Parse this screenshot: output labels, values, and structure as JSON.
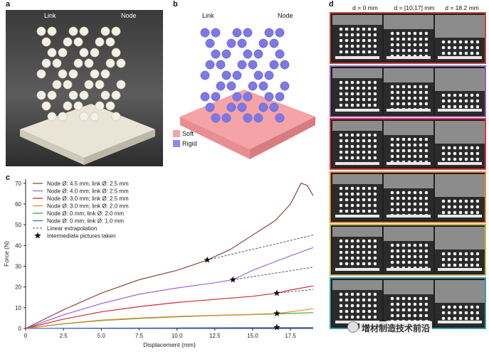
{
  "panels": {
    "a": {
      "letter": "a",
      "link": "Link",
      "node": "Node"
    },
    "b": {
      "letter": "b",
      "link": "Link",
      "node": "Node",
      "legend": [
        {
          "label": "Soft",
          "color": "#f4a3a6"
        },
        {
          "label": "Rigid",
          "color": "#8c88f0"
        }
      ]
    },
    "c": {
      "letter": "c"
    },
    "d": {
      "letter": "d",
      "columns": [
        "d = 0 mm",
        "d = [10;17] mm",
        "d = 18.2 mm"
      ],
      "row_colors": [
        "#c9463d",
        "#9b59b6",
        "#d9344a",
        "#e8892a",
        "#c9b34a",
        "#3a9bb0"
      ]
    }
  },
  "watermark": "增材制造技术前沿",
  "chart_data": {
    "type": "line",
    "xlabel": "Displacement (mm)",
    "ylabel": "Force (N)",
    "xlim": [
      0,
      19
    ],
    "ylim": [
      0,
      72
    ],
    "xticks": [
      "0",
      "2.5",
      "5.0",
      "7.5",
      "10.0",
      "12.5",
      "15.0",
      "17.5"
    ],
    "yticks": [
      "0",
      "10",
      "20",
      "30",
      "40",
      "50",
      "60",
      "70"
    ],
    "legend_position": "top-left",
    "series": [
      {
        "name": "Node Ø: 4.5 mm; link Ø: 2.5 mm",
        "color": "#8b4a3c",
        "x": [
          0,
          2.5,
          5,
          7.5,
          10,
          12,
          13.5,
          15,
          16.5,
          17.5,
          18.2,
          18.6,
          19
        ],
        "y": [
          0,
          9,
          17,
          23.5,
          28,
          33,
          38,
          45,
          52,
          60,
          70,
          69,
          64
        ]
      },
      {
        "name": "Node Ø: 4.0 mm; link Ø: 2.5 mm",
        "color": "#9b6bd6",
        "x": [
          0,
          2.5,
          5,
          7.5,
          10,
          12.5,
          13.7,
          15,
          17.5,
          19
        ],
        "y": [
          0,
          6.5,
          12,
          16.5,
          19.5,
          22,
          23.5,
          28,
          35,
          39
        ]
      },
      {
        "name": "Node Ø: 3.0 mm; link Ø: 2.5 mm",
        "color": "#cc2a35",
        "x": [
          0,
          2.5,
          5,
          7.5,
          10,
          12.5,
          15,
          16.6,
          17.5,
          19
        ],
        "y": [
          0,
          4.5,
          8,
          10.5,
          12.5,
          14,
          15.5,
          17,
          18.5,
          20.5
        ]
      },
      {
        "name": "Node Ø: 3.0 mm; link Ø: 2.0 mm",
        "color": "#e8892a",
        "x": [
          0,
          2.5,
          5,
          7.5,
          10,
          12.5,
          15,
          16.6,
          17.5,
          19
        ],
        "y": [
          0,
          2.3,
          4,
          5,
          5.8,
          6.3,
          6.8,
          7.2,
          8,
          9.5
        ]
      },
      {
        "name": "Node Ø: 0 mm; link Ø: 2.0 mm",
        "color": "#3aa845",
        "x": [
          0,
          2.5,
          5,
          7.5,
          10,
          12.5,
          15,
          16.6,
          19
        ],
        "y": [
          0,
          2.2,
          3.8,
          4.8,
          5.6,
          6.2,
          6.7,
          7,
          7.6
        ]
      },
      {
        "name": "Node Ø: 0 mm; link Ø: 1.0 mm",
        "color": "#3a6fc0",
        "x": [
          0,
          5,
          10,
          15,
          19
        ],
        "y": [
          0,
          0.15,
          0.25,
          0.35,
          0.4
        ]
      }
    ],
    "extrapolations": [
      {
        "x": [
          12,
          19
        ],
        "y": [
          33,
          45
        ]
      },
      {
        "x": [
          13.7,
          19
        ],
        "y": [
          23.5,
          29.5
        ]
      },
      {
        "x": [
          16.6,
          19
        ],
        "y": [
          17,
          18.8
        ]
      }
    ],
    "stars": [
      {
        "x": 12,
        "y": 33
      },
      {
        "x": 13.7,
        "y": 23.5
      },
      {
        "x": 16.6,
        "y": 17
      },
      {
        "x": 16.6,
        "y": 7.2
      },
      {
        "x": 16.6,
        "y": 0.5
      }
    ],
    "legend_extra": [
      "Linear extrapolation",
      "Intermediate pictures taken"
    ]
  }
}
